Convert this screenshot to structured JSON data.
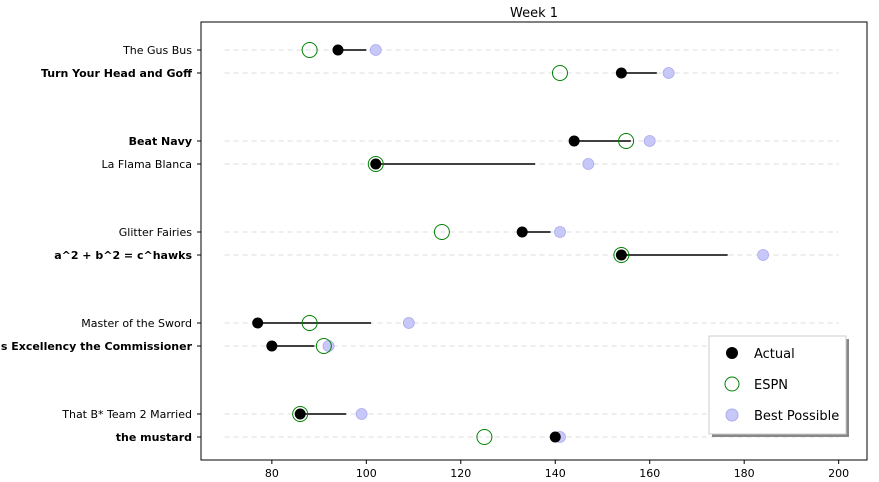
{
  "chart_data": {
    "type": "scatter",
    "title": "Week 1",
    "xlabel": "",
    "ylabel": "",
    "xlim": [
      65,
      206
    ],
    "xticks": [
      80,
      100,
      120,
      140,
      160,
      180,
      200
    ],
    "grid": "dashed horizontal guides per team",
    "legend_position": "lower-right",
    "colors": {
      "actual": "#000000",
      "espn": "#008000",
      "best_possible": "#c8c8f8",
      "best_possible_edge": "#aaaaee",
      "connector": "#000000",
      "guide": "#dddddd"
    },
    "series": [
      {
        "name": "Actual",
        "marker": "filled-circle"
      },
      {
        "name": "ESPN",
        "marker": "open-circle"
      },
      {
        "name": "Best Possible",
        "marker": "light-circle"
      }
    ],
    "matchups": [
      {
        "teams": [
          {
            "name": "The Gus Bus",
            "bold": false,
            "actual": 94,
            "espn": 88,
            "best_possible": 102
          },
          {
            "name": "Turn Your Head and Goff",
            "bold": true,
            "actual": 154,
            "espn": 141,
            "best_possible": 164
          }
        ]
      },
      {
        "teams": [
          {
            "name": "Beat Navy",
            "bold": true,
            "actual": 144,
            "espn": 155,
            "best_possible": 160
          },
          {
            "name": "La Flama Blanca",
            "bold": false,
            "actual": 102,
            "espn": 102,
            "best_possible": 147
          }
        ]
      },
      {
        "teams": [
          {
            "name": "Glitter Fairies",
            "bold": false,
            "actual": 133,
            "espn": 116,
            "best_possible": 141
          },
          {
            "name": "a^2 + b^2 = c^hawks",
            "bold": true,
            "actual": 154,
            "espn": 154,
            "best_possible": 184
          }
        ]
      },
      {
        "teams": [
          {
            "name": "Master of the Sword",
            "bold": false,
            "actual": 77,
            "espn": 88,
            "best_possible": 109
          },
          {
            "name": "His Excellency the Commissioner",
            "bold": true,
            "actual": 80,
            "espn": 91,
            "best_possible": 92
          }
        ]
      },
      {
        "teams": [
          {
            "name": "That B* Team 2 Married",
            "bold": false,
            "actual": 86,
            "espn": 86,
            "best_possible": 99
          },
          {
            "name": "the mustard",
            "bold": true,
            "actual": 140,
            "espn": 125,
            "best_possible": 141
          }
        ]
      }
    ]
  }
}
